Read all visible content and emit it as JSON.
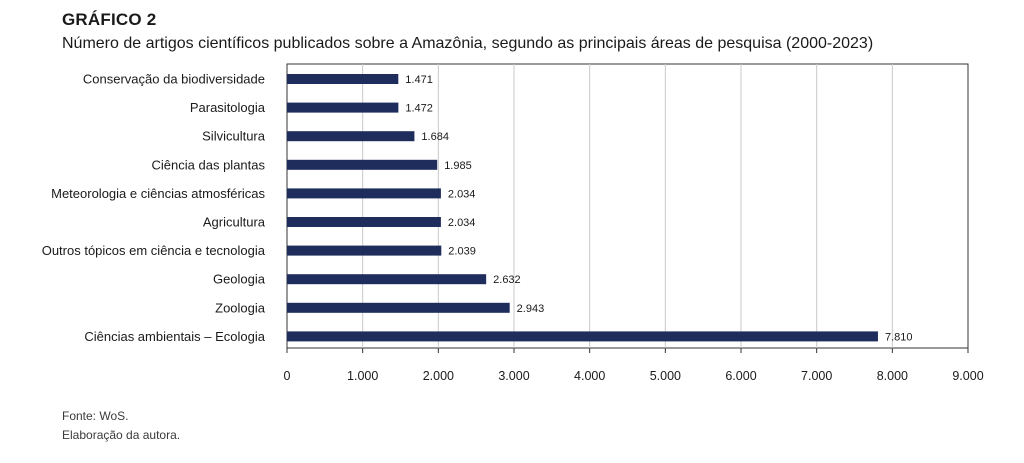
{
  "figure": {
    "label": "GRÁFICO 2",
    "title": "Número de artigos científicos publicados sobre a Amazônia, segundo as principais áreas de pesquisa (2000-2023)"
  },
  "footnotes": {
    "source": "Fonte: WoS.",
    "credit": "Elaboração da autora."
  },
  "colors": {
    "bar": "#1f2d5c",
    "grid": "#c8c8c8",
    "axis": "#333333"
  },
  "chart_data": {
    "type": "bar",
    "orientation": "horizontal",
    "categories": [
      "Conservação da biodiversidade",
      "Parasitologia",
      "Silvicultura",
      "Ciência das plantas",
      "Meteorologia e ciências atmosféricas",
      "Agricultura",
      "Outros tópicos em ciência e tecnologia",
      "Geologia",
      "Zoologia",
      "Ciências ambientais – Ecologia"
    ],
    "values": [
      1471,
      1472,
      1684,
      1985,
      2034,
      2034,
      2039,
      2632,
      2943,
      7810
    ],
    "value_labels": [
      "1.471",
      "1.472",
      "1.684",
      "1.985",
      "2.034",
      "2.034",
      "2.039",
      "2.632",
      "2.943",
      "7.810"
    ],
    "xlim": [
      0,
      9000
    ],
    "xticks": [
      0,
      1000,
      2000,
      3000,
      4000,
      5000,
      6000,
      7000,
      8000,
      9000
    ],
    "xtick_labels": [
      "0",
      "1.000",
      "2.000",
      "3.000",
      "4.000",
      "5.000",
      "6.000",
      "7.000",
      "8.000",
      "9.000"
    ],
    "grid": true,
    "legend": "none"
  }
}
